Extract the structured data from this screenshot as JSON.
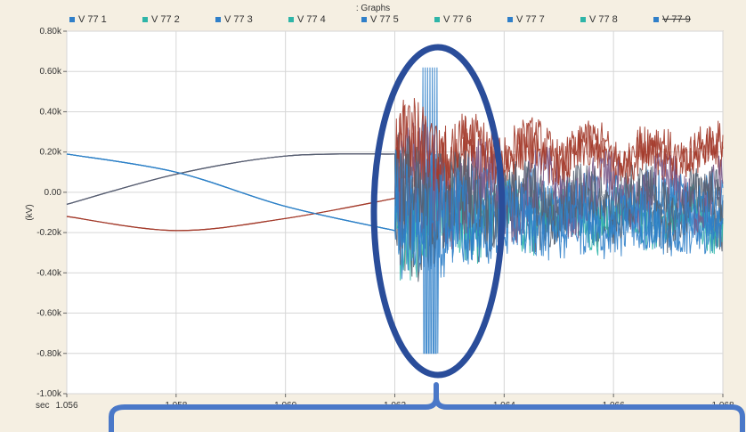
{
  "window": {
    "title": ": Graphs"
  },
  "legend": [
    {
      "label": "V 77 1",
      "color": "#2f7fc9"
    },
    {
      "label": "V 77 2",
      "color": "#2eb5a8"
    },
    {
      "label": "V 77 3",
      "color": "#2f7fc9"
    },
    {
      "label": "V 77 4",
      "color": "#2eb5a8"
    },
    {
      "label": "V 77 5",
      "color": "#2f7fc9"
    },
    {
      "label": "V 77 6",
      "color": "#2eb5a8"
    },
    {
      "label": "V 77 7",
      "color": "#2f7fc9"
    },
    {
      "label": "V 77 8",
      "color": "#2eb5a8"
    },
    {
      "label": "V 77 9",
      "color": "#2f7fc9"
    }
  ],
  "chart_data": {
    "type": "line",
    "title": ": Graphs",
    "xlabel": "sec",
    "ylabel": "(kV)",
    "xlim": [
      1.056,
      1.068
    ],
    "ylim": [
      -1.0,
      0.8
    ],
    "x_ticks": [
      "1.056",
      "1.058",
      "1.060",
      "1.062",
      "1.064",
      "1.066",
      "1.068"
    ],
    "y_ticks": [
      "0.80k",
      "0.60k",
      "0.40k",
      "0.20k",
      "0.00",
      "-0.20k",
      "-0.40k",
      "-0.60k",
      "-0.80k",
      "-1.00k"
    ],
    "grid": true,
    "legend_position": "top",
    "fault_time": 1.062,
    "series": [
      {
        "name": "V 77 1",
        "color": "#2f7fc9",
        "pre_fault": [
          [
            1.056,
            0.19
          ],
          [
            1.058,
            0.1
          ],
          [
            1.06,
            -0.07
          ],
          [
            1.062,
            -0.19
          ]
        ],
        "post_fault_mean": -0.1,
        "post_fault_amp": 0.14
      },
      {
        "name": "V 77 2",
        "color": "#a33a2a",
        "pre_fault": [
          [
            1.056,
            -0.12
          ],
          [
            1.058,
            -0.19
          ],
          [
            1.06,
            -0.13
          ],
          [
            1.062,
            -0.03
          ]
        ],
        "post_fault_mean": 0.18,
        "post_fault_amp": 0.1
      },
      {
        "name": "V 77 3",
        "color": "#556070",
        "pre_fault": [
          [
            1.056,
            -0.06
          ],
          [
            1.058,
            0.09
          ],
          [
            1.06,
            0.18
          ],
          [
            1.062,
            0.19
          ]
        ],
        "post_fault_mean": -0.08,
        "post_fault_amp": 0.14
      },
      {
        "name": "V 77 4",
        "color": "#2eb5a8",
        "pre_fault": [
          [
            1.056,
            0.19
          ],
          [
            1.058,
            0.1
          ],
          [
            1.06,
            -0.07
          ],
          [
            1.062,
            -0.19
          ]
        ],
        "post_fault_mean": -0.12,
        "post_fault_amp": 0.12
      },
      {
        "name": "V 77 5",
        "color": "#2f7fc9",
        "pre_fault": [
          [
            1.056,
            0.19
          ],
          [
            1.058,
            0.1
          ],
          [
            1.06,
            -0.07
          ],
          [
            1.062,
            -0.19
          ]
        ],
        "post_fault_mean": -0.1,
        "post_fault_amp": 0.13
      },
      {
        "name": "V 77 6",
        "color": "#7a5a8a",
        "pre_fault": [
          [
            1.056,
            -0.06
          ],
          [
            1.058,
            0.09
          ],
          [
            1.06,
            0.18
          ],
          [
            1.062,
            0.19
          ]
        ],
        "post_fault_mean": 0.0,
        "post_fault_amp": 0.14
      },
      {
        "name": "V 77 7",
        "color": "#a33a2a",
        "pre_fault": [
          [
            1.056,
            -0.12
          ],
          [
            1.058,
            -0.19
          ],
          [
            1.06,
            -0.13
          ],
          [
            1.062,
            -0.03
          ]
        ],
        "post_fault_mean": 0.2,
        "post_fault_amp": 0.1
      },
      {
        "name": "V 77 8",
        "color": "#556070",
        "pre_fault": [
          [
            1.056,
            -0.06
          ],
          [
            1.058,
            0.09
          ],
          [
            1.06,
            0.18
          ],
          [
            1.062,
            0.19
          ]
        ],
        "post_fault_mean": -0.05,
        "post_fault_amp": 0.13
      },
      {
        "name": "V 77 9",
        "color": "#2f7fc9",
        "pre_fault": [
          [
            1.056,
            0.19
          ],
          [
            1.058,
            0.1
          ],
          [
            1.06,
            -0.07
          ],
          [
            1.062,
            -0.19
          ]
        ],
        "post_fault_mean": -0.14,
        "post_fault_amp": 0.12
      }
    ],
    "annotations": [
      {
        "type": "ellipse",
        "center_x": 1.0626,
        "center_y": -0.15,
        "color": "#2a4d9a"
      },
      {
        "type": "brace",
        "color": "#4a78c8"
      }
    ]
  }
}
